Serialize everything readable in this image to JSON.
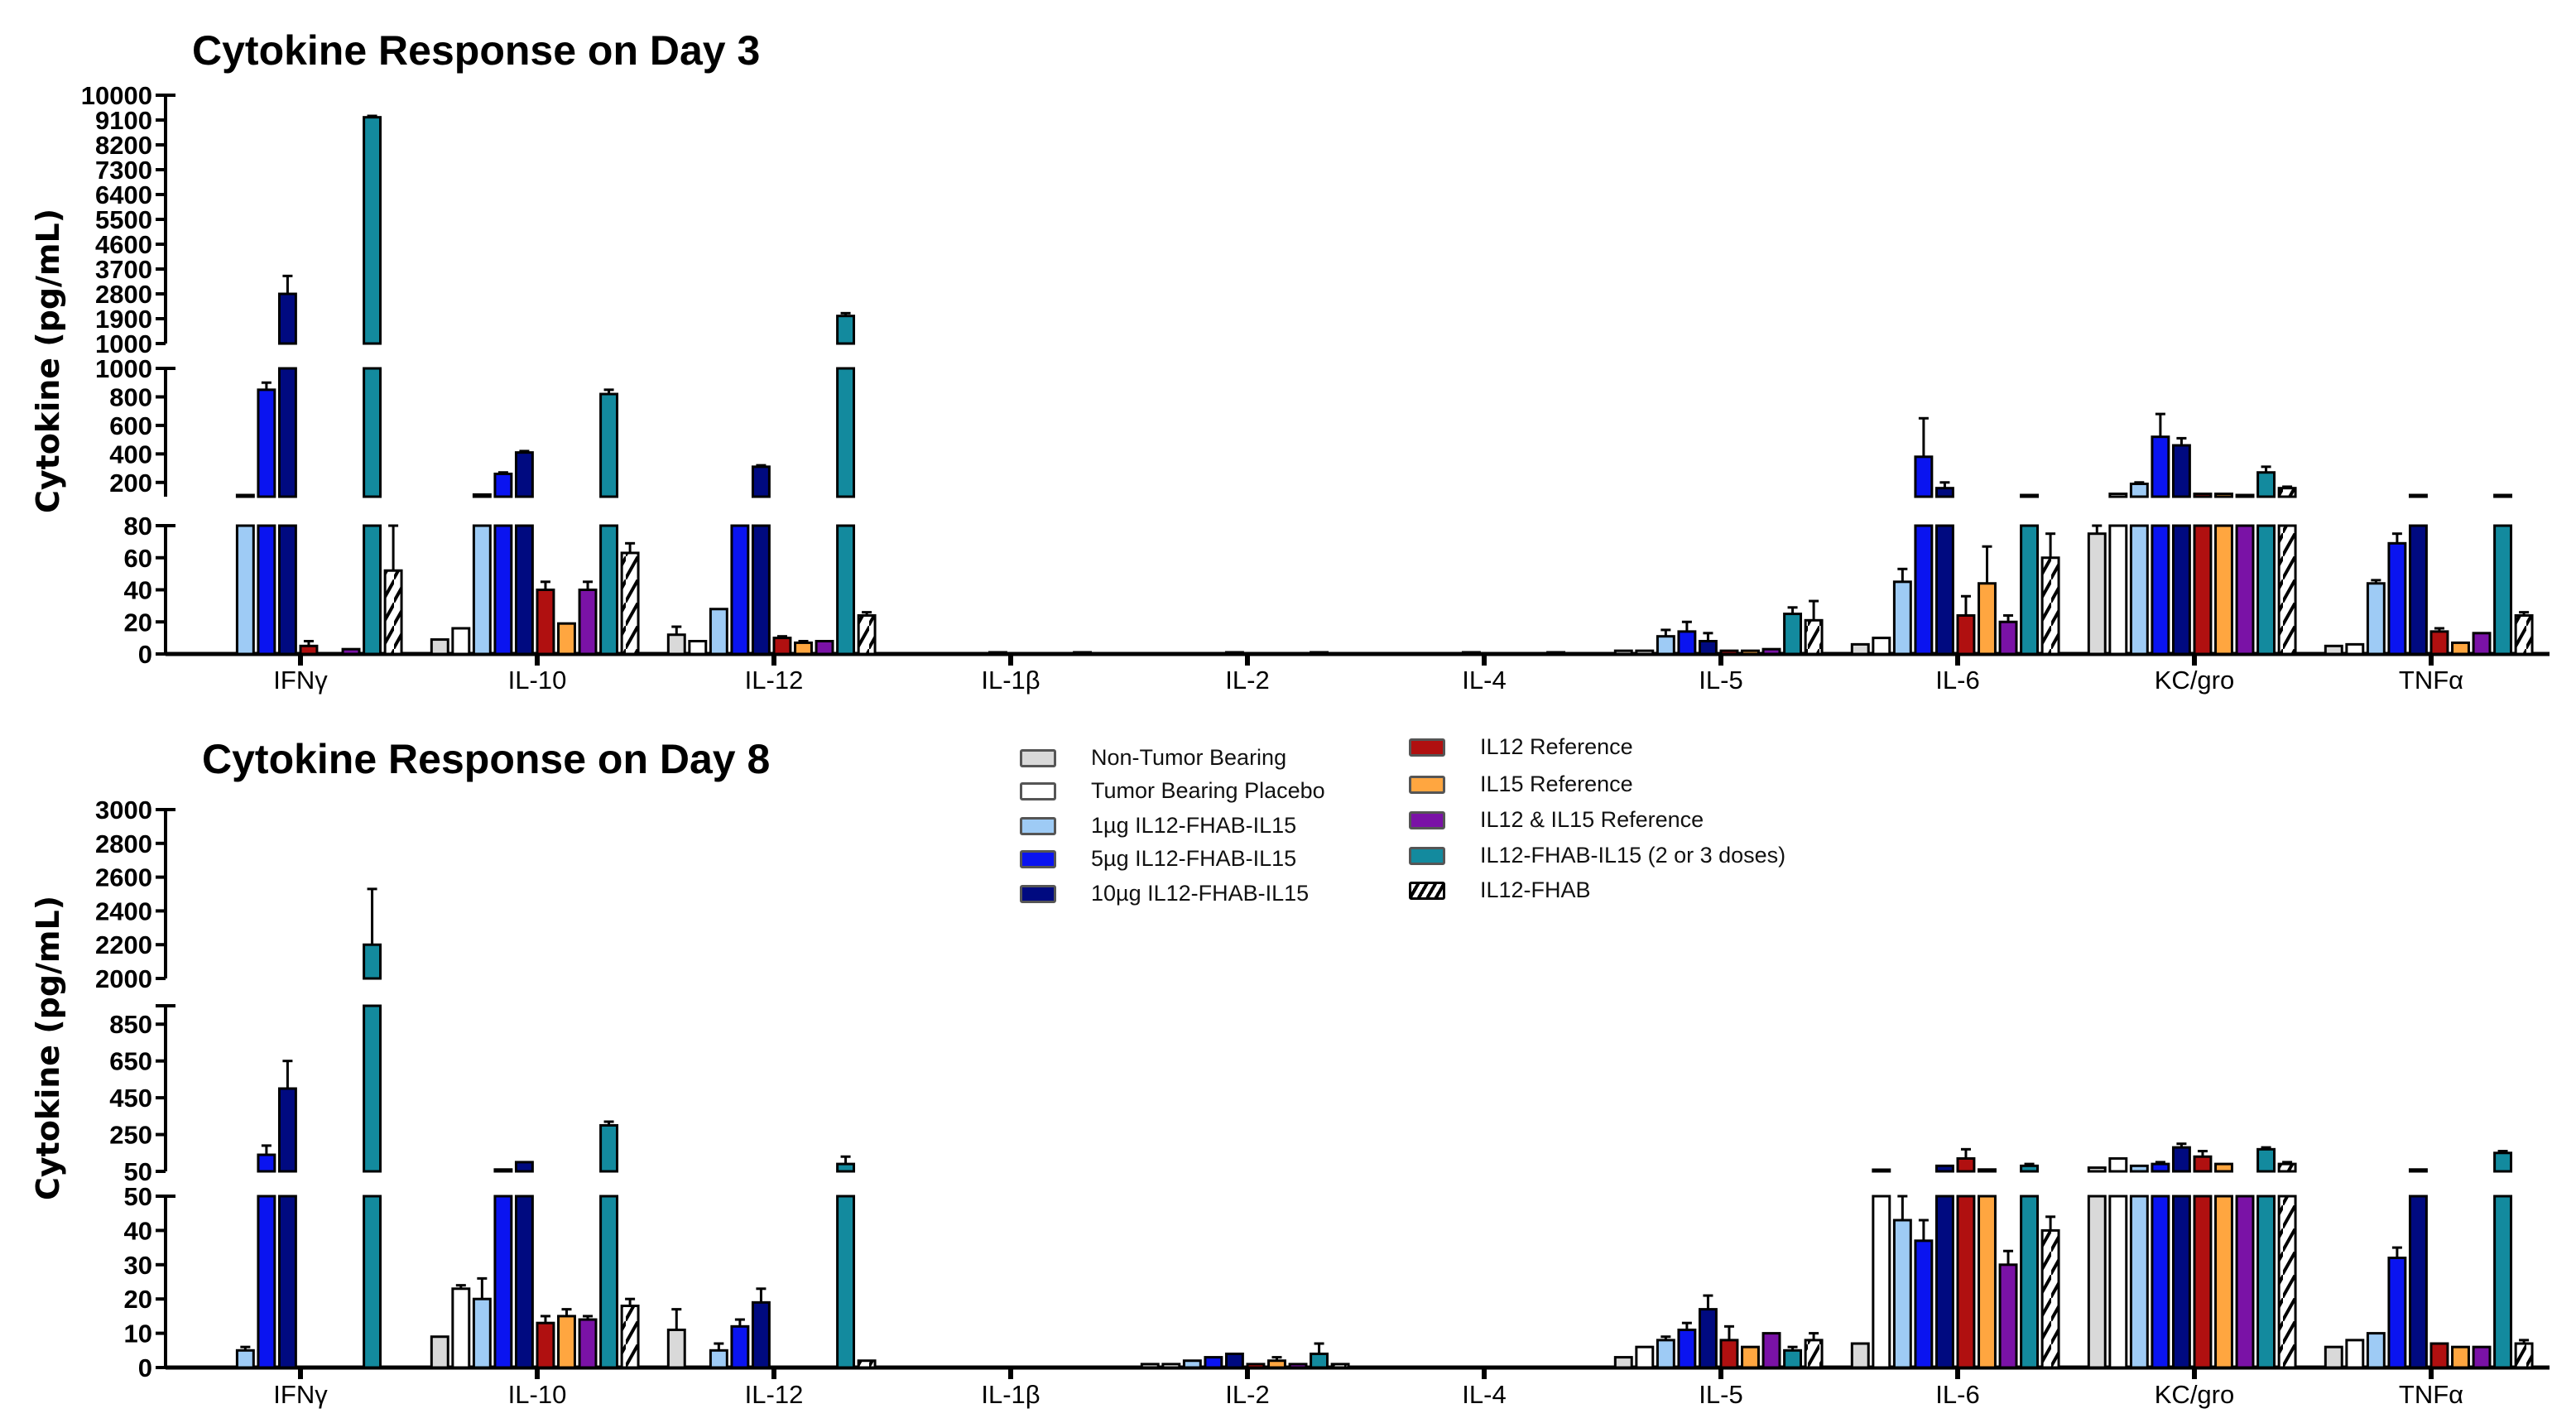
{
  "legend": {
    "items": [
      {
        "label": "Non-Tumor Bearing",
        "color": "#d9d9d9",
        "pattern": "solid"
      },
      {
        "label": "Tumor Bearing Placebo",
        "color": "#ffffff",
        "pattern": "solid"
      },
      {
        "label": "1µg IL12-FHAB-IL15",
        "color": "#9ecbf5",
        "pattern": "solid"
      },
      {
        "label": "5µg IL12-FHAB-IL15",
        "color": "#0a14f0",
        "pattern": "solid"
      },
      {
        "label": "10µg IL12-FHAB-IL15",
        "color": "#000a80",
        "pattern": "solid"
      },
      {
        "label": "IL12 Reference",
        "color": "#b01010",
        "pattern": "solid"
      },
      {
        "label": "IL15 Reference",
        "color": "#ffa640",
        "pattern": "solid"
      },
      {
        "label": "IL12 & IL15 Reference",
        "color": "#7a12a6",
        "pattern": "solid"
      },
      {
        "label": "IL12-FHAB-IL15 (2 or 3 doses)",
        "color": "#138a9e",
        "pattern": "solid"
      },
      {
        "label": "IL12-FHAB",
        "color": "#ffffff",
        "pattern": "hatch"
      }
    ]
  },
  "chart_data": [
    {
      "type": "bar",
      "title": "Cytokine Response on Day 3",
      "xlabel": "",
      "ylabel": "Cytokine (pg/mL)",
      "axis_segments": [
        {
          "range": [
            0,
            80
          ],
          "ticks": [
            "0",
            "20",
            "40",
            "60",
            "80"
          ],
          "tick_values": [
            0,
            20,
            40,
            60,
            80
          ]
        },
        {
          "range": [
            100,
            1000
          ],
          "ticks": [
            "200",
            "400",
            "600",
            "800",
            "1000"
          ],
          "tick_values": [
            200,
            400,
            600,
            800,
            1000
          ]
        },
        {
          "range": [
            1000,
            10000
          ],
          "ticks": [
            "1000",
            "1900",
            "2800",
            "3700",
            "4600",
            "5500",
            "6400",
            "7300",
            "8200",
            "9100",
            "10000"
          ],
          "tick_values": [
            1000,
            1900,
            2800,
            3700,
            4600,
            5500,
            6400,
            7300,
            8200,
            9100,
            10000
          ]
        }
      ],
      "categories": [
        "IFNγ",
        "IL-10",
        "IL-12",
        "IL-1β",
        "IL-2",
        "IL-4",
        "IL-5",
        "IL-6",
        "KC/gro",
        "TNFα"
      ],
      "series": [
        {
          "name": "Non-Tumor Bearing",
          "values": [
            0,
            9,
            12,
            0,
            0,
            0,
            2,
            6,
            75,
            5
          ],
          "errors": [
            0,
            0,
            5,
            0,
            0,
            0,
            0,
            0,
            5,
            0
          ]
        },
        {
          "name": "Tumor Bearing Placebo",
          "values": [
            0,
            16,
            8,
            0,
            0,
            0,
            2,
            10,
            120,
            6
          ],
          "errors": [
            0,
            0,
            0,
            0,
            0,
            0,
            0,
            0,
            0,
            0
          ]
        },
        {
          "name": "1µg IL12-FHAB-IL15",
          "values": [
            110,
            115,
            28,
            0,
            0,
            0,
            11,
            45,
            190,
            44
          ],
          "errors": [
            0,
            0,
            0,
            0,
            0,
            0,
            4,
            8,
            10,
            2
          ]
        },
        {
          "name": "5µg IL12-FHAB-IL15",
          "values": [
            850,
            260,
            100,
            0,
            0,
            0,
            14,
            380,
            520,
            69
          ],
          "errors": [
            50,
            10,
            0,
            0,
            0,
            0,
            6,
            270,
            160,
            6
          ]
        },
        {
          "name": "10µg IL12-FHAB-IL15",
          "values": [
            2800,
            410,
            310,
            1,
            1,
            1,
            8,
            160,
            460,
            110
          ],
          "errors": [
            650,
            10,
            10,
            0,
            0,
            0,
            5,
            40,
            50,
            0
          ]
        },
        {
          "name": "IL12 Reference",
          "values": [
            5,
            40,
            10,
            0,
            0,
            0,
            2,
            24,
            120,
            14
          ],
          "errors": [
            3,
            5,
            1,
            0,
            0,
            0,
            0,
            12,
            0,
            2
          ]
        },
        {
          "name": "IL15 Reference",
          "values": [
            0,
            19,
            7,
            0,
            0,
            0,
            2,
            44,
            120,
            7
          ],
          "errors": [
            0,
            0,
            1,
            0,
            0,
            0,
            0,
            23,
            0,
            0
          ]
        },
        {
          "name": "IL12 & IL15 Reference",
          "values": [
            3,
            40,
            8,
            0,
            0,
            0,
            3,
            20,
            110,
            13
          ],
          "errors": [
            0,
            5,
            0,
            0,
            0,
            0,
            0,
            4,
            0,
            0
          ]
        },
        {
          "name": "IL12-FHAB-IL15 (2 or 3 doses)",
          "values": [
            9200,
            820,
            2000,
            1,
            1,
            1,
            25,
            110,
            270,
            110
          ],
          "errors": [
            50,
            30,
            100,
            0,
            0,
            0,
            4,
            0,
            40,
            0
          ]
        },
        {
          "name": "IL12-FHAB",
          "values": [
            52,
            63,
            24,
            0,
            0,
            0,
            21,
            60,
            160,
            24
          ],
          "errors": [
            28,
            6,
            2,
            0,
            0,
            0,
            12,
            15,
            10,
            2
          ]
        }
      ]
    },
    {
      "type": "bar",
      "title": "Cytokine Response on Day 8",
      "xlabel": "",
      "ylabel": "Cytokine (pg/mL)",
      "axis_segments": [
        {
          "range": [
            0,
            50
          ],
          "ticks": [
            "0",
            "10",
            "20",
            "30",
            "40",
            "50"
          ],
          "tick_values": [
            0,
            10,
            20,
            30,
            40,
            50
          ]
        },
        {
          "range": [
            50,
            950
          ],
          "ticks": [
            "50",
            "250",
            "450",
            "650",
            "850"
          ],
          "tick_values": [
            50,
            250,
            450,
            650,
            850
          ]
        },
        {
          "range": [
            2000,
            3000
          ],
          "ticks": [
            "2000",
            "2200",
            "2400",
            "2600",
            "2800",
            "3000"
          ],
          "tick_values": [
            2000,
            2200,
            2400,
            2600,
            2800,
            3000
          ]
        }
      ],
      "categories": [
        "IFNγ",
        "IL-10",
        "IL-12",
        "IL-1β",
        "IL-2",
        "IL-4",
        "IL-5",
        "IL-6",
        "KC/gro",
        "TNFα"
      ],
      "series": [
        {
          "name": "Non-Tumor Bearing",
          "values": [
            0,
            9,
            11,
            0,
            1,
            0,
            3,
            7,
            70,
            6
          ],
          "errors": [
            0,
            0,
            6,
            0,
            0,
            0,
            0,
            0,
            0,
            0
          ]
        },
        {
          "name": "Tumor Bearing Placebo",
          "values": [
            0,
            23,
            0,
            0,
            1,
            0,
            6,
            55,
            120,
            8
          ],
          "errors": [
            0,
            1,
            0,
            0,
            0,
            0,
            0,
            0,
            0,
            0
          ]
        },
        {
          "name": "1µg IL12-FHAB-IL15",
          "values": [
            5,
            20,
            5,
            0,
            2,
            0,
            8,
            43,
            80,
            10
          ],
          "errors": [
            1,
            6,
            2,
            0,
            0,
            0,
            1,
            12,
            0,
            0
          ]
        },
        {
          "name": "5µg IL12-FHAB-IL15",
          "values": [
            140,
            60,
            12,
            0,
            3,
            0,
            11,
            37,
            90,
            32
          ],
          "errors": [
            50,
            0,
            2,
            0,
            0,
            0,
            2,
            6,
            10,
            3
          ]
        },
        {
          "name": "10µg IL12-FHAB-IL15",
          "values": [
            500,
            100,
            19,
            0,
            4,
            0,
            17,
            80,
            180,
            60
          ],
          "errors": [
            150,
            0,
            4,
            0,
            0,
            0,
            4,
            0,
            20,
            0
          ]
        },
        {
          "name": "IL12 Reference",
          "values": [
            0,
            13,
            0,
            0,
            1,
            0,
            8,
            120,
            130,
            7
          ],
          "errors": [
            0,
            2,
            0,
            0,
            0,
            0,
            4,
            50,
            30,
            0
          ]
        },
        {
          "name": "IL15 Reference",
          "values": [
            0,
            15,
            0,
            0,
            2,
            0,
            6,
            60,
            90,
            6
          ],
          "errors": [
            0,
            2,
            0,
            0,
            1,
            0,
            0,
            0,
            0,
            0
          ]
        },
        {
          "name": "IL12 & IL15 Reference",
          "values": [
            0,
            14,
            0,
            0,
            1,
            0,
            10,
            30,
            50,
            6
          ],
          "errors": [
            0,
            1,
            0,
            0,
            0,
            0,
            0,
            4,
            0,
            0
          ]
        },
        {
          "name": "IL12-FHAB-IL15 (2 or 3 doses)",
          "values": [
            2200,
            300,
            90,
            0,
            4,
            0,
            5,
            80,
            170,
            150
          ],
          "errors": [
            330,
            20,
            40,
            0,
            3,
            0,
            1,
            10,
            10,
            10
          ]
        },
        {
          "name": "IL12-FHAB",
          "values": [
            0,
            18,
            2,
            0,
            1,
            0,
            8,
            40,
            90,
            7
          ],
          "errors": [
            0,
            2,
            0,
            0,
            0,
            0,
            2,
            4,
            10,
            1
          ]
        }
      ]
    }
  ]
}
